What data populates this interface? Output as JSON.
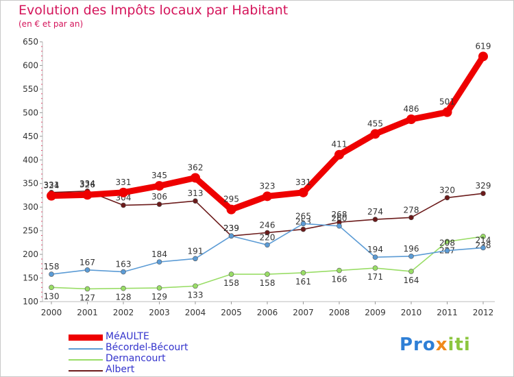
{
  "header": {
    "title": "Evolution des Impôts locaux par Habitant",
    "subtitle": "(en € et par an)"
  },
  "chart_data": {
    "type": "line",
    "x": [
      "2000",
      "2001",
      "2002",
      "2003",
      "2004",
      "2005",
      "2006",
      "2007",
      "2008",
      "2009",
      "2010",
      "2011",
      "2012"
    ],
    "ylim": [
      100,
      650
    ],
    "yticks": [
      100,
      150,
      200,
      250,
      300,
      350,
      400,
      450,
      500,
      550,
      600,
      650
    ],
    "grid": false,
    "legend_position": "bottom-left",
    "series": [
      {
        "name": "MéAULTE",
        "color": "#ee0000",
        "values": [
          324,
          326,
          331,
          345,
          362,
          295,
          323,
          331,
          411,
          455,
          486,
          501,
          619
        ]
      },
      {
        "name": "Bécordel-Bécourt",
        "color": "#5b9bd5",
        "values": [
          158,
          167,
          163,
          184,
          191,
          239,
          220,
          265,
          260,
          194,
          196,
          208,
          214
        ]
      },
      {
        "name": "Dernancourt",
        "color": "#99dd66",
        "values": [
          130,
          127,
          128,
          129,
          133,
          158,
          158,
          161,
          166,
          171,
          164,
          227,
          238
        ]
      },
      {
        "name": "Albert",
        "color": "#6b1a1a",
        "values": [
          331,
          334,
          304,
          306,
          313,
          239,
          246,
          253,
          268,
          274,
          278,
          320,
          329
        ]
      }
    ]
  },
  "logo": {
    "parts": [
      "Pro",
      "x",
      "iti"
    ],
    "colors": [
      "#2e7fd6",
      "#f08a1c",
      "#8cc63f"
    ]
  }
}
